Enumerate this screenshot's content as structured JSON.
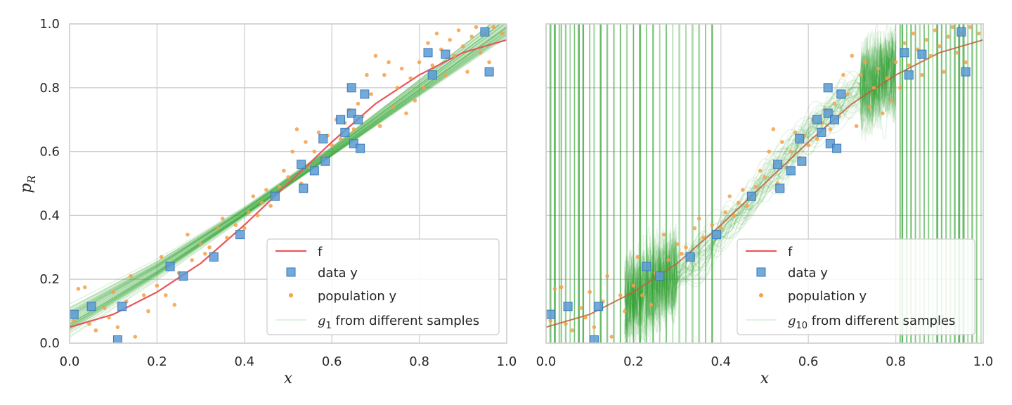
{
  "chart_data": [
    {
      "type": "scatter",
      "panel": "left",
      "xlabel": "x",
      "ylabel": "p",
      "ylabel_sub": "R",
      "xlim": [
        0,
        1
      ],
      "ylim": [
        0,
        1
      ],
      "xticks": [
        "0.0",
        "0.2",
        "0.4",
        "0.6",
        "0.8",
        "1.0"
      ],
      "yticks": [
        "0.0",
        "0.2",
        "0.4",
        "0.6",
        "0.8",
        "1.0"
      ],
      "grid": true,
      "legend_position": "lower-right",
      "legend": [
        {
          "kind": "line",
          "text": "f"
        },
        {
          "kind": "square",
          "text": "data y"
        },
        {
          "kind": "dot",
          "text": "population y"
        },
        {
          "kind": "faint-line",
          "math": "g",
          "sub": "1",
          "text": " from different samples"
        }
      ],
      "series": [
        {
          "name": "f",
          "kind": "line",
          "x": [
            0.0,
            0.1,
            0.2,
            0.3,
            0.4,
            0.5,
            0.6,
            0.7,
            0.8,
            0.9,
            1.0
          ],
          "y": [
            0.05,
            0.09,
            0.16,
            0.25,
            0.37,
            0.5,
            0.63,
            0.75,
            0.84,
            0.91,
            0.95
          ]
        },
        {
          "name": "data y",
          "kind": "square",
          "x": [
            0.01,
            0.05,
            0.11,
            0.12,
            0.23,
            0.26,
            0.33,
            0.39,
            0.47,
            0.53,
            0.535,
            0.56,
            0.58,
            0.585,
            0.62,
            0.63,
            0.645,
            0.645,
            0.65,
            0.66,
            0.665,
            0.675,
            0.82,
            0.83,
            0.86,
            0.95,
            0.96
          ],
          "y": [
            0.09,
            0.115,
            0.01,
            0.115,
            0.24,
            0.21,
            0.27,
            0.34,
            0.46,
            0.56,
            0.485,
            0.54,
            0.64,
            0.57,
            0.7,
            0.66,
            0.8,
            0.72,
            0.625,
            0.7,
            0.61,
            0.78,
            0.91,
            0.84,
            0.905,
            0.975,
            0.85
          ]
        },
        {
          "name": "population y",
          "kind": "dot",
          "x": [
            0.01,
            0.02,
            0.035,
            0.045,
            0.06,
            0.08,
            0.09,
            0.1,
            0.11,
            0.13,
            0.14,
            0.15,
            0.17,
            0.18,
            0.2,
            0.21,
            0.22,
            0.24,
            0.25,
            0.27,
            0.28,
            0.3,
            0.31,
            0.32,
            0.34,
            0.35,
            0.36,
            0.38,
            0.4,
            0.41,
            0.42,
            0.43,
            0.44,
            0.45,
            0.46,
            0.48,
            0.49,
            0.5,
            0.51,
            0.52,
            0.53,
            0.54,
            0.55,
            0.56,
            0.57,
            0.58,
            0.59,
            0.6,
            0.61,
            0.62,
            0.63,
            0.64,
            0.65,
            0.66,
            0.67,
            0.68,
            0.69,
            0.7,
            0.71,
            0.72,
            0.73,
            0.74,
            0.75,
            0.76,
            0.77,
            0.78,
            0.79,
            0.8,
            0.81,
            0.82,
            0.83,
            0.84,
            0.85,
            0.86,
            0.87,
            0.88,
            0.89,
            0.9,
            0.91,
            0.92,
            0.93,
            0.94,
            0.95,
            0.96,
            0.97,
            0.99
          ],
          "y": [
            0.07,
            0.17,
            0.175,
            0.06,
            0.04,
            0.11,
            0.08,
            0.16,
            0.05,
            0.13,
            0.21,
            0.02,
            0.15,
            0.1,
            0.18,
            0.27,
            0.15,
            0.12,
            0.22,
            0.34,
            0.26,
            0.31,
            0.28,
            0.3,
            0.36,
            0.39,
            0.33,
            0.37,
            0.36,
            0.41,
            0.46,
            0.4,
            0.44,
            0.48,
            0.43,
            0.49,
            0.54,
            0.52,
            0.6,
            0.67,
            0.5,
            0.63,
            0.55,
            0.6,
            0.66,
            0.58,
            0.65,
            0.62,
            0.7,
            0.64,
            0.69,
            0.73,
            0.67,
            0.75,
            0.71,
            0.84,
            0.78,
            0.9,
            0.68,
            0.84,
            0.88,
            0.74,
            0.8,
            0.86,
            0.72,
            0.83,
            0.76,
            0.88,
            0.8,
            0.94,
            0.87,
            0.97,
            0.92,
            0.84,
            0.95,
            0.9,
            0.98,
            0.93,
            0.85,
            0.96,
            0.99,
            0.91,
            0.97,
            0.88,
            0.99,
            0.97
          ]
        },
        {
          "name": "g1 samples",
          "kind": "band",
          "x": [
            0.0,
            0.2,
            0.4,
            0.6,
            0.8,
            1.0
          ],
          "center": [
            0.07,
            0.23,
            0.41,
            0.6,
            0.8,
            1.0
          ],
          "spread": [
            0.04,
            0.025,
            0.015,
            0.015,
            0.025,
            0.04
          ]
        }
      ]
    },
    {
      "type": "scatter",
      "panel": "right",
      "xlabel": "x",
      "xlim": [
        0,
        1
      ],
      "ylim": [
        0,
        1
      ],
      "xticks": [
        "0.0",
        "0.2",
        "0.4",
        "0.6",
        "0.8",
        "1.0"
      ],
      "grid": true,
      "legend_position": "lower-right",
      "legend": [
        {
          "kind": "line",
          "text": "f"
        },
        {
          "kind": "square",
          "text": "data y"
        },
        {
          "kind": "dot",
          "text": "population y"
        },
        {
          "kind": "faint-line",
          "math": "g",
          "sub": "10",
          "text": " from different samples"
        }
      ],
      "series": [
        {
          "name": "f",
          "kind": "line",
          "x": [
            0.0,
            0.1,
            0.2,
            0.3,
            0.4,
            0.5,
            0.6,
            0.7,
            0.8,
            0.9,
            1.0
          ],
          "y": [
            0.05,
            0.09,
            0.16,
            0.25,
            0.37,
            0.5,
            0.63,
            0.75,
            0.84,
            0.91,
            0.95
          ]
        },
        {
          "name": "data y",
          "kind": "square",
          "x": [
            0.01,
            0.05,
            0.11,
            0.12,
            0.23,
            0.26,
            0.33,
            0.39,
            0.47,
            0.53,
            0.535,
            0.56,
            0.58,
            0.585,
            0.62,
            0.63,
            0.645,
            0.645,
            0.65,
            0.66,
            0.665,
            0.675,
            0.82,
            0.83,
            0.86,
            0.95,
            0.96
          ],
          "y": [
            0.09,
            0.115,
            0.01,
            0.115,
            0.24,
            0.21,
            0.27,
            0.34,
            0.46,
            0.56,
            0.485,
            0.54,
            0.64,
            0.57,
            0.7,
            0.66,
            0.8,
            0.72,
            0.625,
            0.7,
            0.61,
            0.78,
            0.91,
            0.84,
            0.905,
            0.975,
            0.85
          ]
        },
        {
          "name": "population y",
          "kind": "dot",
          "x": [
            0.01,
            0.02,
            0.035,
            0.045,
            0.06,
            0.08,
            0.09,
            0.1,
            0.11,
            0.13,
            0.14,
            0.15,
            0.17,
            0.18,
            0.2,
            0.21,
            0.22,
            0.24,
            0.25,
            0.27,
            0.28,
            0.3,
            0.31,
            0.32,
            0.34,
            0.35,
            0.36,
            0.38,
            0.4,
            0.41,
            0.42,
            0.43,
            0.44,
            0.45,
            0.46,
            0.48,
            0.49,
            0.5,
            0.51,
            0.52,
            0.53,
            0.54,
            0.55,
            0.56,
            0.57,
            0.58,
            0.59,
            0.6,
            0.61,
            0.62,
            0.63,
            0.64,
            0.65,
            0.66,
            0.67,
            0.68,
            0.69,
            0.7,
            0.71,
            0.72,
            0.73,
            0.74,
            0.75,
            0.76,
            0.77,
            0.78,
            0.79,
            0.8,
            0.81,
            0.82,
            0.83,
            0.84,
            0.85,
            0.86,
            0.87,
            0.88,
            0.89,
            0.9,
            0.91,
            0.92,
            0.93,
            0.94,
            0.95,
            0.96,
            0.97,
            0.99
          ],
          "y": [
            0.07,
            0.17,
            0.175,
            0.06,
            0.04,
            0.11,
            0.08,
            0.16,
            0.05,
            0.13,
            0.21,
            0.02,
            0.15,
            0.1,
            0.18,
            0.27,
            0.15,
            0.12,
            0.22,
            0.34,
            0.26,
            0.31,
            0.28,
            0.3,
            0.36,
            0.39,
            0.33,
            0.37,
            0.36,
            0.41,
            0.46,
            0.4,
            0.44,
            0.48,
            0.43,
            0.49,
            0.54,
            0.52,
            0.6,
            0.67,
            0.5,
            0.63,
            0.55,
            0.6,
            0.66,
            0.58,
            0.65,
            0.62,
            0.7,
            0.64,
            0.69,
            0.73,
            0.67,
            0.75,
            0.71,
            0.84,
            0.78,
            0.9,
            0.68,
            0.84,
            0.88,
            0.74,
            0.8,
            0.86,
            0.72,
            0.83,
            0.76,
            0.88,
            0.8,
            0.94,
            0.87,
            0.97,
            0.92,
            0.84,
            0.95,
            0.9,
            0.98,
            0.93,
            0.85,
            0.96,
            0.99,
            0.91,
            0.97,
            0.88,
            0.99,
            0.97
          ]
        },
        {
          "name": "g10 samples",
          "kind": "wiggles",
          "x_overfit": [
            0.0,
            0.01,
            0.02,
            0.03,
            0.035,
            0.045,
            0.055,
            0.065,
            0.075,
            0.085,
            0.1,
            0.11,
            0.125,
            0.14,
            0.155,
            0.17,
            0.185,
            0.2,
            0.215,
            0.23,
            0.245,
            0.26,
            0.275,
            0.29,
            0.305,
            0.32,
            0.335,
            0.35,
            0.365,
            0.38,
            0.81,
            0.815,
            0.825,
            0.835,
            0.845,
            0.855,
            0.865,
            0.875,
            0.885,
            0.895,
            0.905,
            0.915,
            0.925,
            0.935,
            0.945,
            0.955,
            0.965,
            0.975,
            0.985,
            0.995
          ]
        }
      ]
    }
  ],
  "colors": {
    "f": "#e8575a",
    "data": "#5a9bd4",
    "data_edge": "#3a7ab8",
    "population": "#f5a04a",
    "samples": "#2ca02c",
    "grid": "#d0d0d0",
    "frame": "#cccccc"
  }
}
